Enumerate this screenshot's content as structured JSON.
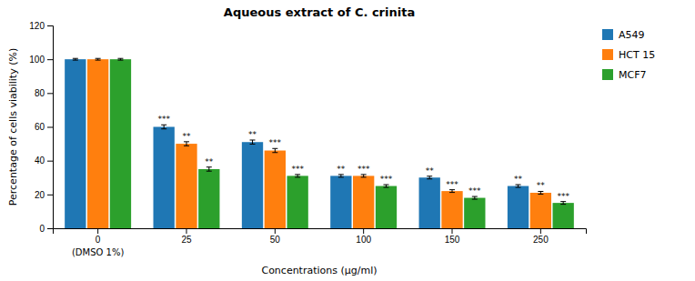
{
  "chart_data": {
    "type": "bar",
    "title": "Aqueous extract of C. crinita",
    "x_label": "Concentrations (μg/ml)",
    "y_label": "Percentage of cells viability (%)",
    "categories": [
      "0",
      "25",
      "50",
      "100",
      "150",
      "250"
    ],
    "annotations": [
      {
        "text": "(DMSO 1%)",
        "x": "0"
      }
    ],
    "series": [
      {
        "name": "A549",
        "values": [
          100,
          60,
          51,
          31,
          30,
          25
        ],
        "errors": [
          0.5,
          1.2,
          1.2,
          0.8,
          0.8,
          0.8
        ],
        "significance": [
          null,
          "***",
          "**",
          "**",
          "**",
          "**"
        ]
      },
      {
        "name": "HCT 15",
        "values": [
          100,
          50,
          46,
          31,
          22,
          21
        ],
        "errors": [
          0.5,
          1.2,
          1.2,
          0.8,
          0.8,
          0.8
        ],
        "significance": [
          null,
          "**",
          "***",
          "***",
          "***",
          "**"
        ]
      },
      {
        "name": "MCF7",
        "values": [
          100,
          35,
          31,
          25,
          18,
          15
        ],
        "errors": [
          0.5,
          1.2,
          0.8,
          0.8,
          0.8,
          0.8
        ],
        "significance": [
          null,
          "**",
          "***",
          "***",
          "***",
          "***"
        ]
      }
    ],
    "ylim": [
      0,
      120
    ],
    "yticks": [
      0,
      20,
      40,
      60,
      80,
      100,
      120
    ],
    "grid": false,
    "legend": "right"
  }
}
